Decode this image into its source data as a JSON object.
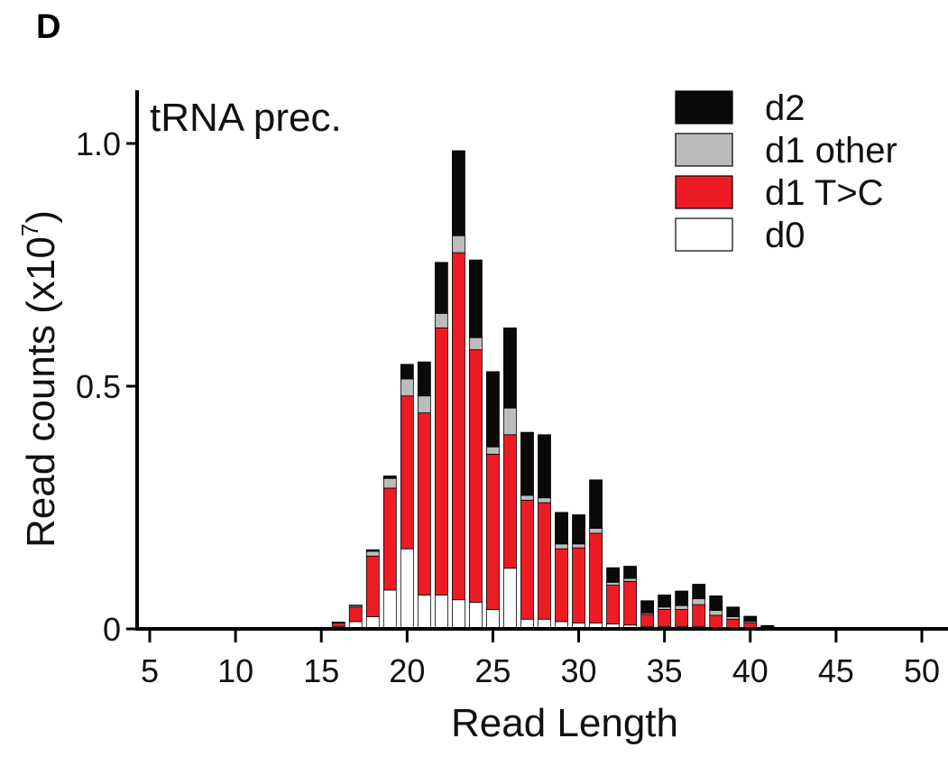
{
  "panel_label": "D",
  "chart_data": {
    "type": "bar",
    "stacked": true,
    "title": "tRNA prec.",
    "xlabel": "Read Length",
    "ylabel_main": "Read counts (x10",
    "ylabel_exp": "7",
    "ylabel_close": ")",
    "xlim": [
      4,
      51
    ],
    "ylim": [
      0,
      1.1
    ],
    "x_ticks": [
      5,
      10,
      15,
      20,
      25,
      30,
      35,
      40,
      45,
      50
    ],
    "y_ticks": [
      0,
      0.5,
      1.0
    ],
    "y_tick_labels": [
      "0",
      "0.5",
      "1.0"
    ],
    "colors": {
      "d0": "#ffffff",
      "d1_tc": "#ed1c24",
      "d1_other": "#bcbcbc",
      "d2": "#0a0a0a"
    },
    "legend": [
      "d2",
      "d1 other",
      "d1 T>C",
      "d0"
    ],
    "legend_position": "top-right",
    "x": [
      16,
      17,
      18,
      19,
      20,
      21,
      22,
      23,
      24,
      25,
      26,
      27,
      28,
      29,
      30,
      31,
      32,
      33,
      34,
      35,
      36,
      37,
      38,
      39,
      40,
      41
    ],
    "series": [
      {
        "name": "d0",
        "values": [
          0.005,
          0.015,
          0.025,
          0.08,
          0.165,
          0.07,
          0.07,
          0.06,
          0.055,
          0.04,
          0.125,
          0.02,
          0.02,
          0.015,
          0.012,
          0.012,
          0.01,
          0.008,
          0.005,
          0.005,
          0.005,
          0.005,
          0.003,
          0.002,
          0.001,
          0.0
        ]
      },
      {
        "name": "d1 T>C",
        "values": [
          0.007,
          0.03,
          0.125,
          0.21,
          0.315,
          0.375,
          0.55,
          0.715,
          0.52,
          0.32,
          0.275,
          0.245,
          0.24,
          0.15,
          0.155,
          0.185,
          0.08,
          0.09,
          0.025,
          0.035,
          0.035,
          0.045,
          0.025,
          0.018,
          0.012,
          0.004
        ]
      },
      {
        "name": "d1 other",
        "values": [
          0.001,
          0.003,
          0.01,
          0.02,
          0.035,
          0.035,
          0.03,
          0.035,
          0.025,
          0.015,
          0.055,
          0.01,
          0.01,
          0.01,
          0.008,
          0.01,
          0.006,
          0.006,
          0.003,
          0.005,
          0.008,
          0.012,
          0.01,
          0.005,
          0.003,
          0.001
        ]
      },
      {
        "name": "d2",
        "values": [
          0.001,
          0.001,
          0.003,
          0.005,
          0.03,
          0.07,
          0.105,
          0.175,
          0.16,
          0.155,
          0.165,
          0.13,
          0.13,
          0.065,
          0.06,
          0.1,
          0.03,
          0.025,
          0.025,
          0.025,
          0.03,
          0.03,
          0.03,
          0.02,
          0.01,
          0.002
        ]
      }
    ]
  }
}
